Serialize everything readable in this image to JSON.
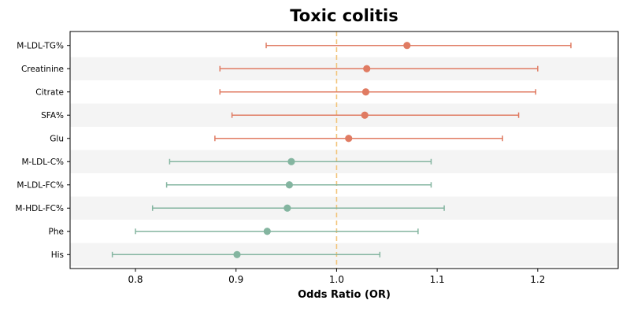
{
  "chart_data": {
    "type": "forest",
    "title": "Toxic colitis",
    "xlabel": "Odds Ratio (OR)",
    "xlim": [
      0.735,
      1.28
    ],
    "xticks": [
      0.8,
      0.9,
      1.0,
      1.1,
      1.2
    ],
    "xtick_labels": [
      "0.8",
      "0.9",
      "1.0",
      "1.1",
      "1.2"
    ],
    "reference_line": 1.0,
    "grid": false,
    "alternating_row_shading": true,
    "colors": {
      "risk": "#e07b62",
      "protective": "#84b5a0",
      "reference_line": "#f2c47a",
      "row_shade": "#f4f4f4"
    },
    "rows": [
      {
        "label": "M-LDL-TG%",
        "or": 1.07,
        "lower": 0.93,
        "upper": 1.233,
        "group": "risk"
      },
      {
        "label": "Creatinine",
        "or": 1.03,
        "lower": 0.884,
        "upper": 1.2,
        "group": "risk"
      },
      {
        "label": "Citrate",
        "or": 1.029,
        "lower": 0.884,
        "upper": 1.198,
        "group": "risk"
      },
      {
        "label": "SFA%",
        "or": 1.028,
        "lower": 0.896,
        "upper": 1.181,
        "group": "risk"
      },
      {
        "label": "Glu",
        "or": 1.012,
        "lower": 0.879,
        "upper": 1.165,
        "group": "risk"
      },
      {
        "label": "M-LDL-C%",
        "or": 0.955,
        "lower": 0.834,
        "upper": 1.094,
        "group": "protective"
      },
      {
        "label": "M-LDL-FC%",
        "or": 0.953,
        "lower": 0.831,
        "upper": 1.094,
        "group": "protective"
      },
      {
        "label": "M-HDL-FC%",
        "or": 0.951,
        "lower": 0.817,
        "upper": 1.107,
        "group": "protective"
      },
      {
        "label": "Phe",
        "or": 0.931,
        "lower": 0.8,
        "upper": 1.081,
        "group": "protective"
      },
      {
        "label": "His",
        "or": 0.901,
        "lower": 0.777,
        "upper": 1.043,
        "group": "protective"
      }
    ]
  }
}
